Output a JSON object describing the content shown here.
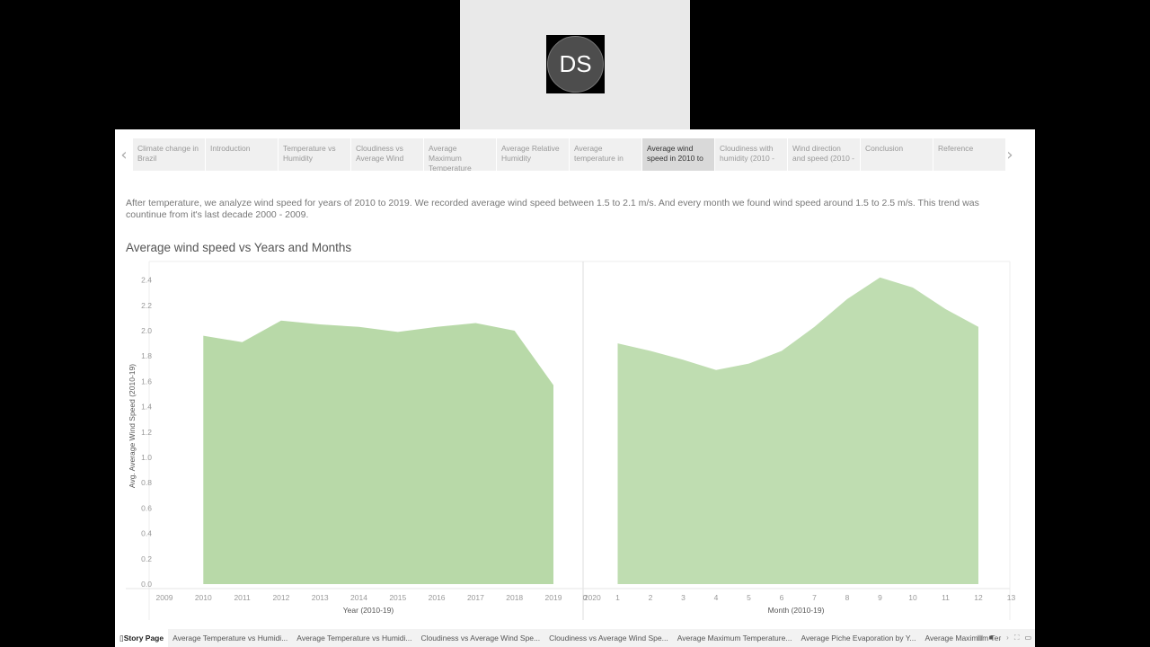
{
  "presenter": {
    "initials": "DS"
  },
  "story": {
    "nav": {
      "prev_icon": "‹",
      "next_icon": "›",
      "tabs": [
        {
          "label": "Climate change in Brazil"
        },
        {
          "label": "Introduction"
        },
        {
          "label": "Temperature vs Humidity"
        },
        {
          "label": "Cloudiness vs Average Wind"
        },
        {
          "label": "Average Maximum Temperature"
        },
        {
          "label": "Average Relative Humidity"
        },
        {
          "label": "Average temperature in"
        },
        {
          "label": "Average wind speed in 2010 to"
        },
        {
          "label": "Cloudiness with humidity (2010 -"
        },
        {
          "label": "Wind direction and speed (2010 -"
        },
        {
          "label": "Conclusion"
        },
        {
          "label": "Reference"
        }
      ],
      "active_index": 7
    },
    "description": "After temperature, we analyze wind speed for years of 2010 to 2019. We recorded average wind speed between 1.5 to 2.1 m/s. And every month we found wind speed around 1.5 to 2.5 m/s. This trend was countinue from it's last decade 2000 - 2009.",
    "title": "Average wind speed vs Years and Months"
  },
  "chart_data": [
    {
      "type": "area",
      "title": "Average wind speed vs Years and Months",
      "xlabel": "Year (2010-19)",
      "ylabel": "Avg. Average Wind Speed (2010-19)",
      "x_ticks": [
        "2009",
        "2010",
        "2011",
        "2012",
        "2013",
        "2014",
        "2015",
        "2016",
        "2017",
        "2018",
        "2019",
        "2020"
      ],
      "x": [
        2010,
        2011,
        2012,
        2013,
        2014,
        2015,
        2016,
        2017,
        2018,
        2019
      ],
      "values": [
        1.96,
        1.91,
        2.08,
        2.05,
        2.03,
        1.99,
        2.03,
        2.06,
        2.0,
        1.57
      ],
      "y_ticks": [
        "0.0",
        "0.2",
        "0.4",
        "0.6",
        "0.8",
        "1.0",
        "1.2",
        "1.4",
        "1.6",
        "1.8",
        "2.0",
        "2.2",
        "2.4"
      ],
      "ylim": [
        0,
        2.5
      ],
      "xlim": [
        2009,
        2020
      ],
      "color": "#b8d9a8",
      "grid": false
    },
    {
      "type": "area",
      "xlabel": "Month (2010-19)",
      "ylabel": "Avg. Average Wind Speed (2010-19)",
      "x_ticks": [
        "0",
        "1",
        "2",
        "3",
        "4",
        "5",
        "6",
        "7",
        "8",
        "9",
        "10",
        "11",
        "12",
        "13"
      ],
      "x": [
        1,
        2,
        3,
        4,
        5,
        6,
        7,
        8,
        9,
        10,
        11,
        12
      ],
      "values": [
        1.9,
        1.84,
        1.77,
        1.69,
        1.74,
        1.84,
        2.03,
        2.25,
        2.42,
        2.34,
        2.17,
        2.03
      ],
      "ylim": [
        0,
        2.5
      ],
      "xlim": [
        0,
        13
      ],
      "color": "#bfddb1",
      "grid": false
    }
  ],
  "bottom_bar": {
    "tabs": [
      {
        "label": "Story Page",
        "icon": "book-icon"
      },
      {
        "label": "Average Temperature vs Humidi..."
      },
      {
        "label": "Average Temperature vs Humidi..."
      },
      {
        "label": "Cloudiness vs Average Wind Spe..."
      },
      {
        "label": "Cloudiness vs Average Wind Spe..."
      },
      {
        "label": "Average Maximum Temperature..."
      },
      {
        "label": "Average Piche Evaporation by Y..."
      },
      {
        "label": "Average Maximum Ter"
      }
    ],
    "controls": [
      "grid-view-icon",
      "filmstrip-icon",
      "prev-icon",
      "next-icon",
      "fullscreen-icon",
      "present-icon"
    ]
  }
}
